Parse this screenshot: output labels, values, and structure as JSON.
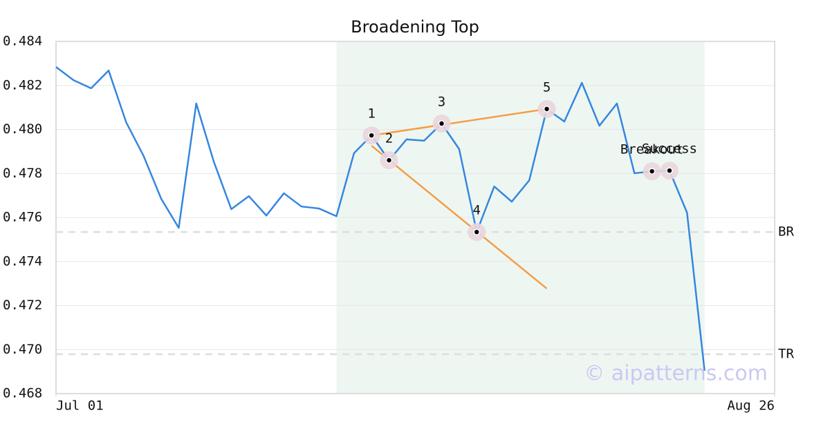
{
  "chart_data": {
    "type": "line",
    "title": "Broadening Top",
    "color": "#3486e0",
    "values": [
      0.48284,
      0.48224,
      0.48187,
      0.48268,
      0.48033,
      0.47879,
      0.47685,
      0.47553,
      0.48118,
      0.47854,
      0.47638,
      0.47697,
      0.47609,
      0.4771,
      0.4765,
      0.47641,
      0.47606,
      0.47892,
      0.47973,
      0.4786,
      0.47955,
      0.47949,
      0.48027,
      0.47911,
      0.47534,
      0.47741,
      0.47672,
      0.47769,
      0.48093,
      0.48036,
      0.48212,
      0.48017,
      0.48118,
      0.47801,
      0.4781,
      0.47813,
      0.47622,
      0.46904
    ],
    "xlim": [
      0,
      41
    ],
    "xticks": [
      {
        "value": 0,
        "label": "Jul 01"
      },
      {
        "value": 41,
        "label": "Aug 26"
      }
    ],
    "ylim": [
      0.468,
      0.484
    ],
    "yticks": [
      0.468,
      {
        "value": 0.47,
        "label": "0.470"
      },
      0.472,
      0.474,
      0.476,
      0.478,
      {
        "value": 0.48,
        "label": "0.480"
      },
      0.482,
      0.484
    ],
    "grid": true,
    "shaded_range": [
      16,
      37
    ],
    "shade_color": "#eef6f2",
    "trend_color": "#f59d45",
    "trend_lines": [
      {
        "x": [
          18,
          28
        ],
        "values": [
          0.47973,
          0.48093
        ]
      },
      {
        "x": [
          18,
          28
        ],
        "values": [
          0.47926,
          0.47277
        ]
      }
    ],
    "pattern_points": [
      {
        "label": "1",
        "x": 18,
        "value": 0.47973
      },
      {
        "label": "2",
        "x": 19,
        "value": 0.4786
      },
      {
        "label": "3",
        "x": 22,
        "value": 0.48027
      },
      {
        "label": "4",
        "x": 24,
        "value": 0.47534
      },
      {
        "label": "5",
        "x": 28,
        "value": 0.48093
      },
      {
        "label": "Breakout",
        "x": 34,
        "value": 0.4781
      },
      {
        "label": "Success",
        "x": 35,
        "value": 0.47813
      }
    ],
    "levels": [
      {
        "label": "BR",
        "value": 0.47534
      },
      {
        "label": "TR",
        "value": 0.46979
      }
    ],
    "watermark": "© aipatterns.com"
  }
}
